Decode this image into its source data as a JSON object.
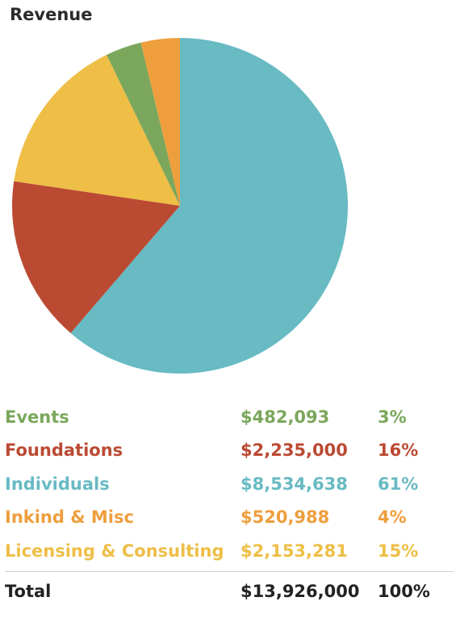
{
  "chart_data": {
    "type": "pie",
    "title": "Revenue",
    "slices": [
      {
        "label": "Individuals",
        "value": 8534638,
        "value_label": "$8,534,638",
        "percent_label": "61%",
        "color": "#68BAC3"
      },
      {
        "label": "Foundations",
        "value": 2235000,
        "value_label": "$2,235,000",
        "percent_label": "16%",
        "color": "#BB4A33"
      },
      {
        "label": "Licensing & Consulting",
        "value": 2153281,
        "value_label": "$2,153,281",
        "percent_label": "15%",
        "color": "#EEBE46"
      },
      {
        "label": "Events",
        "value": 482093,
        "value_label": "$482,093",
        "percent_label": "3%",
        "color": "#7BA75C"
      },
      {
        "label": "Inkind & Misc",
        "value": 520988,
        "value_label": "$520,988",
        "percent_label": "4%",
        "color": "#EE9E3D"
      }
    ],
    "legend": [
      {
        "label": "Events",
        "value": "$482,093",
        "percent": "3%",
        "color": "#7BA75C"
      },
      {
        "label": "Foundations",
        "value": "$2,235,000",
        "percent": "16%",
        "color": "#BB4A33"
      },
      {
        "label": "Individuals",
        "value": "$8,534,638",
        "percent": "61%",
        "color": "#68BAC3"
      },
      {
        "label": "Inkind & Misc",
        "value": "$520,988",
        "percent": "4%",
        "color": "#EE9E3D"
      },
      {
        "label": "Licensing & Consulting",
        "value": "$2,153,281",
        "percent": "15%",
        "color": "#EEBE46"
      }
    ],
    "total": {
      "label": "Total",
      "value": "$13,926,000",
      "percent": "100%"
    }
  }
}
